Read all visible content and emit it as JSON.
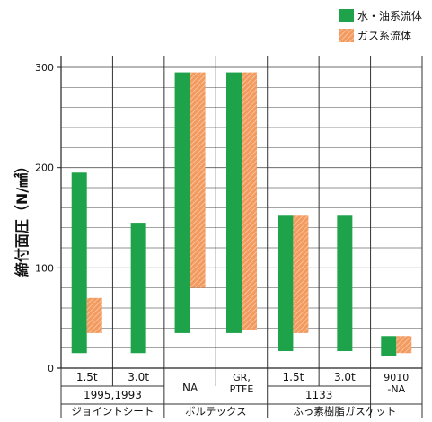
{
  "chart_data": {
    "type": "bar",
    "ylabel": "締付面圧（N/㎟）",
    "ylim": [
      0,
      300
    ],
    "yticks": [
      0,
      100,
      200,
      300
    ],
    "grid": true,
    "legend_position": "top-right",
    "series": [
      {
        "name": "水・油系流体",
        "color": "#1fa34a"
      },
      {
        "name": "ガス系流体",
        "color": "#f08a4b"
      }
    ],
    "columns": [
      {
        "label": "1.5t",
        "bars": [
          {
            "series": 0,
            "low": 15,
            "high": 195
          },
          {
            "series": 1,
            "low": 35,
            "high": 70
          }
        ]
      },
      {
        "label": "3.0t",
        "bars": [
          {
            "series": 0,
            "low": 15,
            "high": 145
          }
        ]
      },
      {
        "label": "NA",
        "bars": [
          {
            "series": 0,
            "low": 35,
            "high": 295
          },
          {
            "series": 1,
            "low": 80,
            "high": 295
          }
        ]
      },
      {
        "label": "GR,\nPTFE",
        "bars": [
          {
            "series": 0,
            "low": 35,
            "high": 295
          },
          {
            "series": 1,
            "low": 38,
            "high": 295
          }
        ]
      },
      {
        "label": "1.5t",
        "bars": [
          {
            "series": 0,
            "low": 17,
            "high": 152
          },
          {
            "series": 1,
            "low": 35,
            "high": 152
          }
        ]
      },
      {
        "label": "3.0t",
        "bars": [
          {
            "series": 0,
            "low": 17,
            "high": 152
          }
        ]
      },
      {
        "label": "9010\n-NA",
        "bars": [
          {
            "series": 0,
            "low": 12,
            "high": 32
          },
          {
            "series": 1,
            "low": 15,
            "high": 32
          }
        ]
      }
    ],
    "subgroups": [
      {
        "label": "1995,1993",
        "span": [
          0,
          1
        ]
      },
      {
        "label": "1133",
        "span": [
          4,
          5
        ]
      }
    ],
    "groups": [
      {
        "label": "ジョイントシート",
        "span": [
          0,
          1
        ]
      },
      {
        "label": "ボルテックス",
        "span": [
          2,
          3
        ]
      },
      {
        "label": "ふっ素樹脂ガスケット",
        "span": [
          4,
          6
        ]
      }
    ]
  }
}
